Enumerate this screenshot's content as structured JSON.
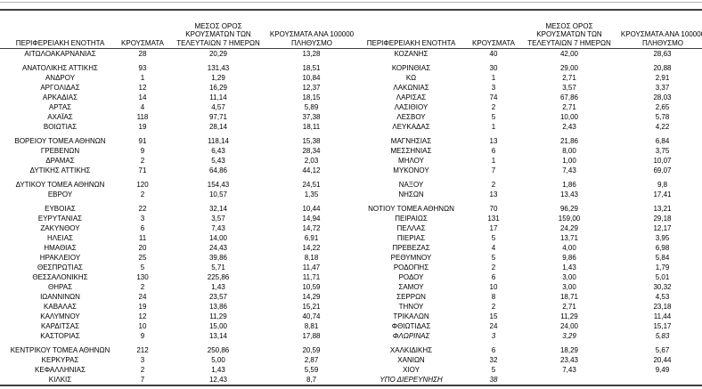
{
  "table": {
    "headers": {
      "region": "ΠΕΡΙΦΕΡΕΙΑΚΗ ΕΝΟΤΗΤΑ",
      "cases": "ΚΡΟΥΣΜΑΤΑ",
      "avg7": "ΜΕΣΟΣ ΟΡΟΣ ΚΡΟΥΣΜΑΤΩΝ ΤΩΝ ΤΕΛΕΥΤΑΙΩΝ 7 ΗΜΕΡΩΝ",
      "per100k": "ΚΡΟΥΣΜΑΤΑ ΑΝΑ 100000 ΠΛΗΘΥΣΜΟ"
    },
    "left_groups": [
      [
        {
          "name": "ΑΙΤΩΛΟΑΚΑΡΝΑΝΙΑΣ",
          "cases": "28",
          "avg7": "20,29",
          "per100k": "13,28"
        }
      ],
      [
        {
          "name": "ΑΝΑΤΟΛΙΚΗΣ ΑΤΤΙΚΗΣ",
          "cases": "93",
          "avg7": "131,43",
          "per100k": "18,51"
        },
        {
          "name": "ΑΝΔΡΟΥ",
          "cases": "1",
          "avg7": "1,29",
          "per100k": "10,84"
        },
        {
          "name": "ΑΡΓΟΛΙΔΑΣ",
          "cases": "12",
          "avg7": "16,29",
          "per100k": "12,37"
        },
        {
          "name": "ΑΡΚΑΔΙΑΣ",
          "cases": "14",
          "avg7": "11,14",
          "per100k": "18,15"
        },
        {
          "name": "ΑΡΤΑΣ",
          "cases": "4",
          "avg7": "4,57",
          "per100k": "5,89"
        },
        {
          "name": "ΑΧΑΪΑΣ",
          "cases": "118",
          "avg7": "97,71",
          "per100k": "37,38"
        },
        {
          "name": "ΒΟΙΩΤΙΑΣ",
          "cases": "19",
          "avg7": "28,14",
          "per100k": "18,11"
        }
      ],
      [
        {
          "name": "ΒΟΡΕΙΟΥ ΤΟΜΕΑ ΑΘΗΝΩΝ",
          "cases": "91",
          "avg7": "118,14",
          "per100k": "15,38"
        },
        {
          "name": "ΓΡΕΒΕΝΩΝ",
          "cases": "9",
          "avg7": "6,43",
          "per100k": "28,34"
        },
        {
          "name": "ΔΡΑΜΑΣ",
          "cases": "2",
          "avg7": "5,43",
          "per100k": "2,03"
        },
        {
          "name": "ΔΥΤΙΚΗΣ ΑΤΤΙΚΗΣ",
          "cases": "71",
          "avg7": "64,86",
          "per100k": "44,12"
        }
      ],
      [
        {
          "name": "ΔΥΤΙΚΟΥ ΤΟΜΕΑ ΑΘΗΝΩΝ",
          "cases": "120",
          "avg7": "154,43",
          "per100k": "24,51"
        },
        {
          "name": "ΕΒΡΟΥ",
          "cases": "2",
          "avg7": "10,57",
          "per100k": "1,35"
        }
      ],
      [
        {
          "name": "ΕΥΒΟΙΑΣ",
          "cases": "22",
          "avg7": "32,14",
          "per100k": "10,44"
        },
        {
          "name": "ΕΥΡΥΤΑΝΙΑΣ",
          "cases": "3",
          "avg7": "3,57",
          "per100k": "14,94"
        },
        {
          "name": "ΖΑΚΥΝΘΟΥ",
          "cases": "6",
          "avg7": "7,43",
          "per100k": "14,72"
        },
        {
          "name": "ΗΛΕΙΑΣ",
          "cases": "11",
          "avg7": "14,00",
          "per100k": "6,91"
        },
        {
          "name": "ΗΜΑΘΙΑΣ",
          "cases": "20",
          "avg7": "24,43",
          "per100k": "14,22"
        },
        {
          "name": "ΗΡΑΚΛΕΙΟΥ",
          "cases": "25",
          "avg7": "39,86",
          "per100k": "8,18"
        },
        {
          "name": "ΘΕΣΠΡΩΤΙΑΣ",
          "cases": "5",
          "avg7": "5,71",
          "per100k": "11,47"
        },
        {
          "name": "ΘΕΣΣΑΛΟΝΙΚΗΣ",
          "cases": "130",
          "avg7": "225,86",
          "per100k": "11,71"
        },
        {
          "name": "ΘΗΡΑΣ",
          "cases": "2",
          "avg7": "1,43",
          "per100k": "10,59"
        },
        {
          "name": "ΙΩΑΝΝΙΝΩΝ",
          "cases": "24",
          "avg7": "23,57",
          "per100k": "14,29"
        },
        {
          "name": "ΚΑΒΑΛΑΣ",
          "cases": "19",
          "avg7": "13,86",
          "per100k": "15,21"
        },
        {
          "name": "ΚΑΛΥΜΝΟΥ",
          "cases": "12",
          "avg7": "11,29",
          "per100k": "40,74"
        },
        {
          "name": "ΚΑΡΔΙΤΣΑΣ",
          "cases": "10",
          "avg7": "15,00",
          "per100k": "8,81"
        },
        {
          "name": "ΚΑΣΤΟΡΙΑΣ",
          "cases": "9",
          "avg7": "13,14",
          "per100k": "17,88"
        }
      ],
      [
        {
          "name": "ΚΕΝΤΡΙΚΟΥ ΤΟΜΕΑ ΑΘΗΝΩΝ",
          "cases": "212",
          "avg7": "250,86",
          "per100k": "20,59"
        },
        {
          "name": "ΚΕΡΚΥΡΑΣ",
          "cases": "3",
          "avg7": "5,00",
          "per100k": "2,87"
        },
        {
          "name": "ΚΕΦΑΛΛΗΝΙΑΣ",
          "cases": "2",
          "avg7": "1,43",
          "per100k": "5,59"
        },
        {
          "name": "ΚΙΛΚΙΣ",
          "cases": "7",
          "avg7": "12,43",
          "per100k": "8,7"
        }
      ]
    ],
    "right_groups": [
      [
        {
          "name": "ΚΟΖΑΝΗΣ",
          "cases": "40",
          "avg7": "42,00",
          "per100k": "28,63"
        }
      ],
      [
        {
          "name": "ΚΟΡΙΝΘΙΑΣ",
          "cases": "30",
          "avg7": "29,00",
          "per100k": "20,88"
        },
        {
          "name": "ΚΩ",
          "cases": "1",
          "avg7": "2,71",
          "per100k": "2,91"
        },
        {
          "name": "ΛΑΚΩΝΙΑΣ",
          "cases": "3",
          "avg7": "3,57",
          "per100k": "3,37"
        },
        {
          "name": "ΛΑΡΙΣΑΣ",
          "cases": "74",
          "avg7": "67,86",
          "per100k": "28,03"
        },
        {
          "name": "ΛΑΣΙΘΙΟΥ",
          "cases": "2",
          "avg7": "2,71",
          "per100k": "2,65"
        },
        {
          "name": "ΛΕΣΒΟΥ",
          "cases": "5",
          "avg7": "10,00",
          "per100k": "5,78"
        },
        {
          "name": "ΛΕΥΚΑΔΑΣ",
          "cases": "1",
          "avg7": "2,43",
          "per100k": "4,22"
        }
      ],
      [
        {
          "name": "ΜΑΓΝΗΣΙΑΣ",
          "cases": "13",
          "avg7": "21,86",
          "per100k": "6,84"
        },
        {
          "name": "ΜΕΣΣΗΝΙΑΣ",
          "cases": "6",
          "avg7": "8,00",
          "per100k": "3,75"
        },
        {
          "name": "ΜΗΛΟΥ",
          "cases": "1",
          "avg7": "1,00",
          "per100k": "10,07"
        },
        {
          "name": "ΜΥΚΟΝΟΥ",
          "cases": "7",
          "avg7": "7,43",
          "per100k": "69,07"
        }
      ],
      [
        {
          "name": "ΝΑΞΟΥ",
          "cases": "2",
          "avg7": "1,86",
          "per100k": "9,8"
        },
        {
          "name": "ΝΗΣΩΝ",
          "cases": "13",
          "avg7": "13,43",
          "per100k": "17,41"
        }
      ],
      [
        {
          "name": "ΝΟΤΙΟΥ ΤΟΜΕΑ ΑΘΗΝΩΝ",
          "cases": "70",
          "avg7": "96,29",
          "per100k": "13,21"
        },
        {
          "name": "ΠΕΙΡΑΙΩΣ",
          "cases": "131",
          "avg7": "159,00",
          "per100k": "29,18"
        },
        {
          "name": "ΠΕΛΛΑΣ",
          "cases": "17",
          "avg7": "24,29",
          "per100k": "12,17"
        },
        {
          "name": "ΠΙΕΡΙΑΣ",
          "cases": "5",
          "avg7": "13,71",
          "per100k": "3,95"
        },
        {
          "name": "ΠΡΕΒΕΖΑΣ",
          "cases": "4",
          "avg7": "4,00",
          "per100k": "6,98"
        },
        {
          "name": "ΡΕΘΥΜΝΟΥ",
          "cases": "5",
          "avg7": "9,86",
          "per100k": "5,84"
        },
        {
          "name": "ΡΟΔΟΠΗΣ",
          "cases": "2",
          "avg7": "1,43",
          "per100k": "1,79"
        },
        {
          "name": "ΡΟΔΟΥ",
          "cases": "6",
          "avg7": "3,00",
          "per100k": "5,01"
        },
        {
          "name": "ΣΑΜΟΥ",
          "cases": "10",
          "avg7": "3,00",
          "per100k": "30,32"
        },
        {
          "name": "ΣΕΡΡΩΝ",
          "cases": "8",
          "avg7": "18,71",
          "per100k": "4,53"
        },
        {
          "name": "ΤΗΝΟΥ",
          "cases": "2",
          "avg7": "2,71",
          "per100k": "23,18"
        },
        {
          "name": "ΤΡΙΚΑΛΩΝ",
          "cases": "15",
          "avg7": "11,29",
          "per100k": "11,44"
        },
        {
          "name": "ΦΘΙΩΤΙΔΑΣ",
          "cases": "24",
          "avg7": "24,00",
          "per100k": "15,17"
        },
        {
          "name": "ΦΛΩΡΙΝΑΣ",
          "cases": "3",
          "avg7": "3,29",
          "per100k": "5,83",
          "italic": true
        }
      ],
      [
        {
          "name": "ΧΑΛΚΙΔΙΚΗΣ",
          "cases": "6",
          "avg7": "18,29",
          "per100k": "5,67"
        },
        {
          "name": "ΧΑΝΙΩΝ",
          "cases": "32",
          "avg7": "23,43",
          "per100k": "20,44"
        },
        {
          "name": "ΧΙΟΥ",
          "cases": "5",
          "avg7": "7,43",
          "per100k": "9,49"
        },
        {
          "name": "ΥΠΟ ΔΙΕΡΕΥΝΗΣΗ",
          "cases": "38",
          "avg7": "",
          "per100k": "",
          "italic": true
        }
      ]
    ]
  }
}
